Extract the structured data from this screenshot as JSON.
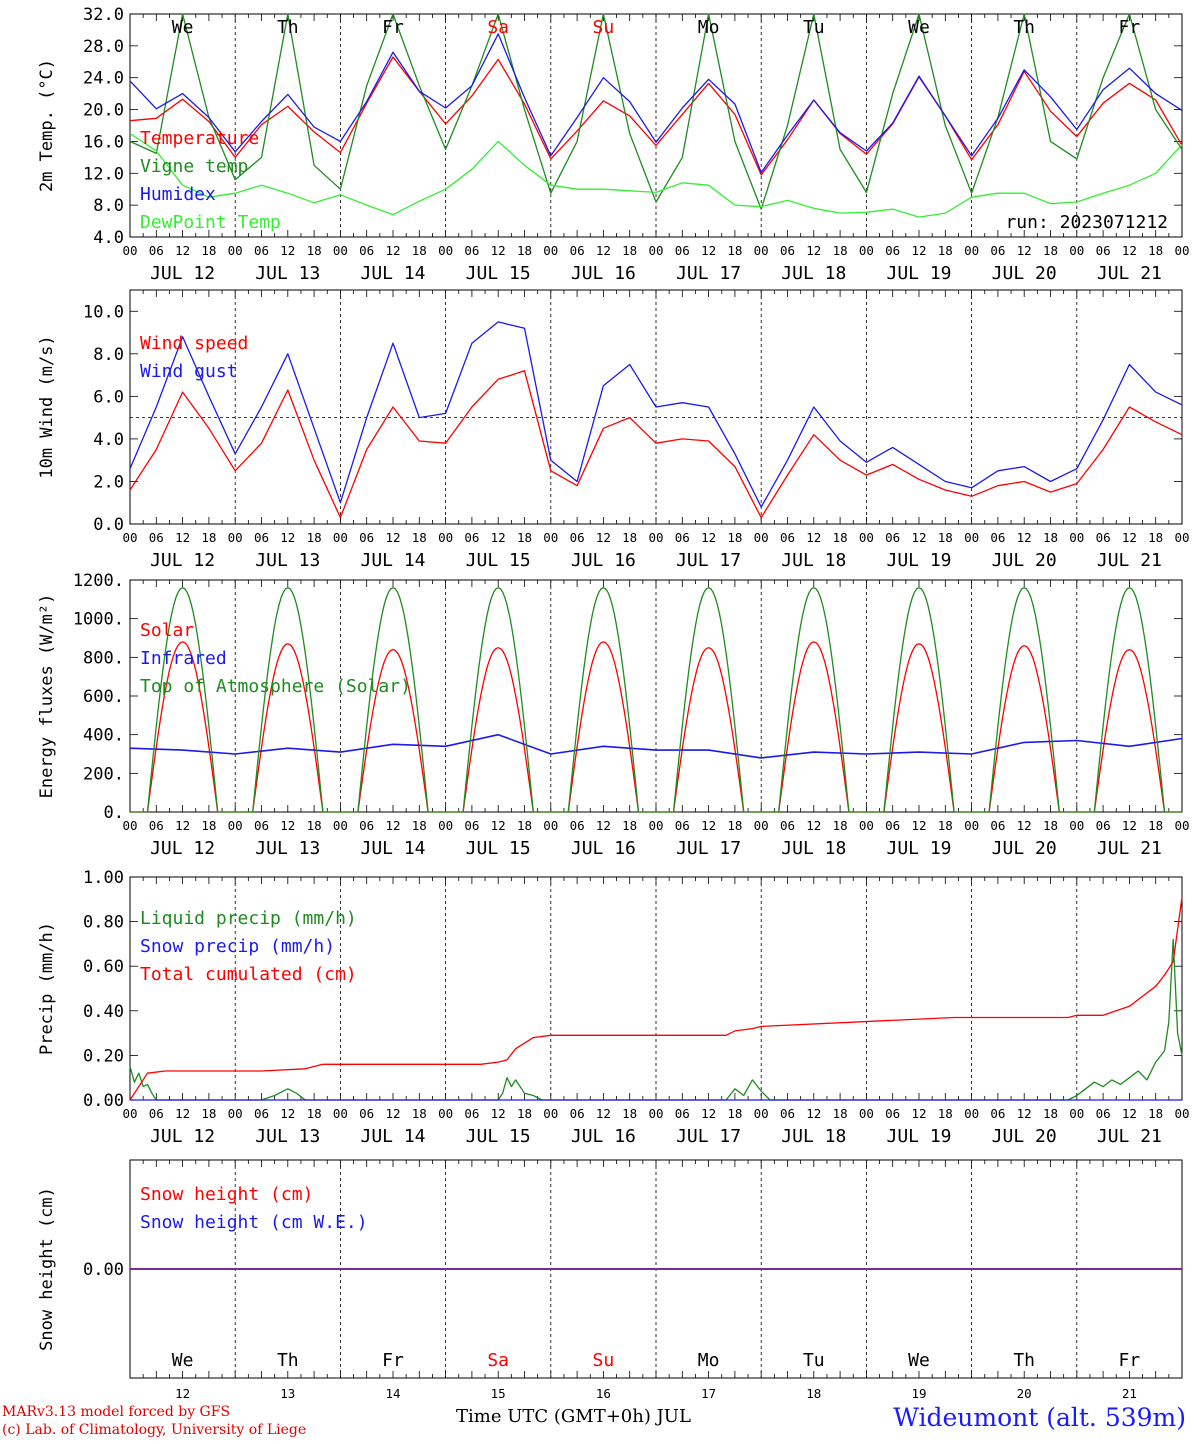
{
  "chart_data": [
    {
      "type": "line",
      "id": "temperature",
      "ylabel": "2m Temp. (°C)",
      "ylim": [
        4,
        32
      ],
      "yticks": [
        "4.0",
        "8.0",
        "12.0",
        "16.0",
        "20.0",
        "24.0",
        "28.0",
        "32.0"
      ],
      "ref_line": null,
      "legend_placement": "left",
      "annotation": "run: 2023071212",
      "series": [
        {
          "name": "Temperature",
          "color": "#ff0000",
          "x": [
            0,
            6,
            12,
            18,
            24,
            30,
            36,
            42,
            48,
            54,
            60,
            66,
            72,
            78,
            84,
            90,
            96,
            102,
            108,
            114,
            120,
            126,
            132,
            138,
            144,
            150,
            156,
            162,
            168,
            174,
            180,
            186,
            192,
            198,
            204,
            210,
            216,
            222,
            228,
            234,
            240
          ],
          "values": [
            18.6,
            18.9,
            21.3,
            18.5,
            14.0,
            18.1,
            20.4,
            17.2,
            14.6,
            20.8,
            26.6,
            22.3,
            18.2,
            21.7,
            26.3,
            20.7,
            13.8,
            17.3,
            21.1,
            19.2,
            15.5,
            19.4,
            23.3,
            19.4,
            11.8,
            16.2,
            21.2,
            17.0,
            14.4,
            18.2,
            24.1,
            19.2,
            13.7,
            18.1,
            24.8,
            19.8,
            16.6,
            20.8,
            23.3,
            21.2,
            15.5
          ]
        },
        {
          "name": "Vigne temp",
          "color": "#1e8c1e",
          "x": [
            0,
            6,
            12,
            18,
            24,
            30,
            36,
            42,
            48,
            54,
            60,
            66,
            72,
            78,
            84,
            90,
            96,
            102,
            108,
            114,
            120,
            126,
            132,
            138,
            144,
            150,
            156,
            162,
            168,
            174,
            180,
            186,
            192,
            198,
            204,
            210,
            216,
            222,
            228,
            234,
            240
          ],
          "values": [
            16.0,
            14.5,
            32.0,
            19.0,
            11.2,
            14.0,
            32.0,
            13.0,
            10.0,
            23.0,
            32.0,
            23.0,
            15.0,
            23.0,
            32.0,
            20.0,
            9.5,
            16.0,
            32.0,
            17.0,
            8.4,
            14.0,
            32.0,
            16.0,
            7.5,
            18.0,
            32.0,
            15.0,
            9.6,
            22.0,
            32.0,
            18.0,
            9.5,
            19.0,
            32.0,
            16.0,
            13.8,
            24.0,
            32.0,
            20.0,
            15.0
          ]
        },
        {
          "name": "Humidex",
          "color": "#1a1aee",
          "x": [
            0,
            6,
            12,
            18,
            24,
            30,
            36,
            42,
            48,
            54,
            60,
            66,
            72,
            78,
            84,
            90,
            96,
            102,
            108,
            114,
            120,
            126,
            132,
            138,
            144,
            150,
            156,
            162,
            168,
            174,
            180,
            186,
            192,
            198,
            204,
            210,
            216,
            222,
            228,
            234,
            240
          ],
          "values": [
            23.6,
            20.1,
            22.0,
            19.0,
            14.7,
            18.5,
            21.9,
            17.8,
            16.0,
            21.0,
            27.2,
            22.3,
            20.2,
            23.0,
            29.5,
            21.5,
            14.2,
            19.0,
            24.0,
            21.0,
            15.9,
            20.2,
            23.8,
            20.7,
            12.1,
            16.8,
            21.2,
            17.1,
            14.8,
            18.3,
            24.2,
            19.2,
            14.2,
            18.9,
            25.0,
            21.6,
            17.5,
            22.5,
            25.2,
            22.0,
            19.9
          ]
        },
        {
          "name": "DewPoint Temp",
          "color": "#33ee33",
          "x": [
            0,
            6,
            12,
            18,
            24,
            30,
            36,
            42,
            48,
            54,
            60,
            66,
            72,
            78,
            84,
            90,
            96,
            102,
            108,
            114,
            120,
            126,
            132,
            138,
            144,
            150,
            156,
            162,
            168,
            174,
            180,
            186,
            192,
            198,
            204,
            210,
            216,
            222,
            228,
            234,
            240
          ],
          "values": [
            17.0,
            14.8,
            10.5,
            9.0,
            9.5,
            10.5,
            9.5,
            8.3,
            9.3,
            8.0,
            6.8,
            8.5,
            10.0,
            12.5,
            16.0,
            13.0,
            10.5,
            10.0,
            10.0,
            9.8,
            9.6,
            10.8,
            10.5,
            8.0,
            7.8,
            8.6,
            7.6,
            7.0,
            7.1,
            7.5,
            6.5,
            7.0,
            9.0,
            9.5,
            9.5,
            8.2,
            8.4,
            9.5,
            10.5,
            12.0,
            15.6
          ]
        }
      ],
      "x_tick_hours": [
        "00",
        "06",
        "12",
        "18"
      ],
      "x_days": [
        "JUL 12",
        "JUL 13",
        "JUL 14",
        "JUL 15",
        "JUL 16",
        "JUL 17",
        "JUL 18",
        "JUL 19",
        "JUL 20",
        "JUL 21"
      ],
      "day_names": [
        "We",
        "Th",
        "Fr",
        "Sa",
        "Su",
        "Mo",
        "Tu",
        "We",
        "Th",
        "Fr"
      ]
    },
    {
      "type": "line",
      "id": "wind",
      "ylabel": "10m Wind (m/s)",
      "ylim": [
        0,
        11
      ],
      "yticks": [
        "0.0",
        "2.0",
        "4.0",
        "6.0",
        "8.0",
        "10.0"
      ],
      "ref_line": 5,
      "legend_placement": "left",
      "series": [
        {
          "name": "Wind speed",
          "color": "#ff0000",
          "x": [
            0,
            6,
            12,
            18,
            24,
            30,
            36,
            42,
            48,
            54,
            60,
            66,
            72,
            78,
            84,
            90,
            96,
            102,
            108,
            114,
            120,
            126,
            132,
            138,
            144,
            150,
            156,
            162,
            168,
            174,
            180,
            186,
            192,
            198,
            204,
            210,
            216,
            222,
            228,
            234,
            240
          ],
          "values": [
            1.6,
            3.5,
            6.2,
            4.5,
            2.5,
            3.8,
            6.3,
            3.0,
            0.3,
            3.5,
            5.5,
            3.9,
            3.8,
            5.5,
            6.8,
            7.2,
            2.5,
            1.8,
            4.5,
            5.0,
            3.8,
            4.0,
            3.9,
            2.7,
            0.3,
            2.3,
            4.2,
            3.0,
            2.3,
            2.8,
            2.1,
            1.6,
            1.3,
            1.8,
            2.0,
            1.5,
            1.9,
            3.5,
            5.5,
            4.8,
            4.2
          ]
        },
        {
          "name": "Wind gust",
          "color": "#1a1aee",
          "x": [
            0,
            6,
            12,
            18,
            24,
            30,
            36,
            42,
            48,
            54,
            60,
            66,
            72,
            78,
            84,
            90,
            96,
            102,
            108,
            114,
            120,
            126,
            132,
            138,
            144,
            150,
            156,
            162,
            168,
            174,
            180,
            186,
            192,
            198,
            204,
            210,
            216,
            222,
            228,
            234,
            240
          ],
          "values": [
            2.6,
            5.5,
            8.8,
            6.0,
            3.3,
            5.5,
            8.0,
            4.5,
            1.0,
            5.0,
            8.5,
            5.0,
            5.2,
            8.5,
            9.5,
            9.2,
            3.0,
            2.0,
            6.5,
            7.5,
            5.5,
            5.7,
            5.5,
            3.3,
            0.8,
            3.0,
            5.5,
            3.9,
            2.9,
            3.6,
            2.8,
            2.0,
            1.7,
            2.5,
            2.7,
            2.0,
            2.6,
            4.9,
            7.5,
            6.2,
            5.6
          ]
        }
      ],
      "x_tick_hours": [
        "00",
        "06",
        "12",
        "18"
      ],
      "x_days": [
        "JUL 12",
        "JUL 13",
        "JUL 14",
        "JUL 15",
        "JUL 16",
        "JUL 17",
        "JUL 18",
        "JUL 19",
        "JUL 20",
        "JUL 21"
      ]
    },
    {
      "type": "line",
      "id": "energy",
      "ylabel": "Energy fluxes (W/m²)",
      "ylim": [
        0,
        1200
      ],
      "yticks": [
        "0.",
        "200.",
        "400.",
        "600.",
        "800.",
        "1000.",
        "1200."
      ],
      "ref_line": null,
      "legend_placement": "left",
      "daily": {
        "sunrise_h": 4,
        "sunset_h": 20,
        "noon_h": 12,
        "toa_peak": 1160
      },
      "series": [
        {
          "name": "Solar",
          "color": "#ff0000",
          "day_peaks": [
            880,
            870,
            840,
            850,
            880,
            850,
            880,
            870,
            860,
            840
          ]
        },
        {
          "name": "Infrared",
          "color": "#1a1aee",
          "x": [
            0,
            12,
            24,
            36,
            48,
            60,
            72,
            84,
            96,
            108,
            120,
            132,
            144,
            156,
            168,
            180,
            192,
            204,
            216,
            228,
            240
          ],
          "values": [
            330,
            320,
            300,
            330,
            310,
            350,
            340,
            400,
            300,
            340,
            320,
            320,
            280,
            310,
            300,
            310,
            300,
            360,
            370,
            340,
            380
          ]
        },
        {
          "name": "Top of Atmosphere (Solar)",
          "color": "#1e8c1e",
          "day_peaks": [
            1160,
            1160,
            1160,
            1160,
            1160,
            1160,
            1160,
            1160,
            1160,
            1160
          ]
        }
      ],
      "x_tick_hours": [
        "00",
        "06",
        "12",
        "18"
      ],
      "x_days": [
        "JUL 12",
        "JUL 13",
        "JUL 14",
        "JUL 15",
        "JUL 16",
        "JUL 17",
        "JUL 18",
        "JUL 19",
        "JUL 20",
        "JUL 21"
      ]
    },
    {
      "type": "line",
      "id": "precip",
      "ylabel": "Precip (mm/h)",
      "ylim": [
        0,
        1
      ],
      "yticks": [
        "0.00",
        "0.20",
        "0.40",
        "0.60",
        "0.80",
        "1.00"
      ],
      "ref_line": null,
      "legend_placement": "left",
      "series": [
        {
          "name": "Liquid precip (mm/h)",
          "color": "#1e8c1e",
          "x": [
            0,
            1,
            2,
            3,
            4,
            5,
            6,
            8,
            30,
            33,
            36,
            38,
            40,
            42,
            84,
            85,
            86,
            87,
            88,
            90,
            92,
            94,
            96,
            136,
            138,
            140,
            142,
            144,
            146,
            214,
            216,
            218,
            220,
            222,
            224,
            226,
            228,
            230,
            232,
            234,
            236,
            237,
            238,
            239,
            240
          ],
          "values": [
            0.15,
            0.08,
            0.12,
            0.06,
            0.07,
            0.03,
            0.0,
            0.0,
            0.0,
            0.02,
            0.05,
            0.03,
            0.0,
            0.0,
            0.0,
            0.03,
            0.1,
            0.06,
            0.09,
            0.03,
            0.02,
            0.0,
            0.0,
            0.0,
            0.05,
            0.02,
            0.09,
            0.04,
            0.0,
            0.0,
            0.02,
            0.05,
            0.08,
            0.06,
            0.09,
            0.07,
            0.1,
            0.13,
            0.09,
            0.17,
            0.22,
            0.35,
            0.72,
            0.3,
            0.2
          ]
        },
        {
          "name": "Snow precip (mm/h)",
          "color": "#1a1aee",
          "x": [
            0,
            240
          ],
          "values": [
            0,
            0
          ]
        },
        {
          "name": "Total cumulated (cm)",
          "color": "#ff0000",
          "x": [
            0,
            4,
            8,
            30,
            40,
            44,
            48,
            72,
            80,
            84,
            86,
            88,
            92,
            96,
            108,
            122,
            136,
            138,
            142,
            144,
            188,
            200,
            210,
            214,
            216,
            222,
            228,
            234,
            236,
            238,
            240
          ],
          "values": [
            0,
            0.12,
            0.13,
            0.13,
            0.14,
            0.16,
            0.16,
            0.16,
            0.16,
            0.17,
            0.18,
            0.23,
            0.28,
            0.29,
            0.29,
            0.29,
            0.29,
            0.31,
            0.32,
            0.33,
            0.37,
            0.37,
            0.37,
            0.37,
            0.38,
            0.38,
            0.42,
            0.51,
            0.56,
            0.62,
            0.91
          ]
        }
      ],
      "x_tick_hours": [
        "00",
        "06",
        "12",
        "18"
      ],
      "x_days": [
        "JUL 12",
        "JUL 13",
        "JUL 14",
        "JUL 15",
        "JUL 16",
        "JUL 17",
        "JUL 18",
        "JUL 19",
        "JUL 20",
        "JUL 21"
      ]
    },
    {
      "type": "line",
      "id": "snow",
      "ylabel": "Snow height (cm)",
      "ylim": [
        -1,
        1
      ],
      "yticks": [
        "0.00"
      ],
      "ref_line": null,
      "legend_placement": "left",
      "series": [
        {
          "name": "Snow height (cm)",
          "color": "#ff0000",
          "x": [
            0,
            240
          ],
          "values": [
            0,
            0
          ]
        },
        {
          "name": "Snow height (cm W.E.)",
          "color": "#1a1aee",
          "x": [
            0,
            240
          ],
          "values": [
            0,
            0
          ]
        }
      ],
      "day_names": [
        "We",
        "Th",
        "Fr",
        "Sa",
        "Su",
        "Mo",
        "Tu",
        "We",
        "Th",
        "Fr"
      ],
      "day_numbers": [
        "12",
        "13",
        "14",
        "15",
        "16",
        "17",
        "18",
        "19",
        "20",
        "21"
      ]
    }
  ],
  "weekend_color": "#ff0000",
  "footer": {
    "credit_line1": "MARv3.13 model forced by GFS",
    "credit_line2": "(c) Lab. of Climatology, University of Liege",
    "x_title": "Time UTC (GMT+0h) JUL",
    "station": "Wideumont (alt. 539m)"
  }
}
